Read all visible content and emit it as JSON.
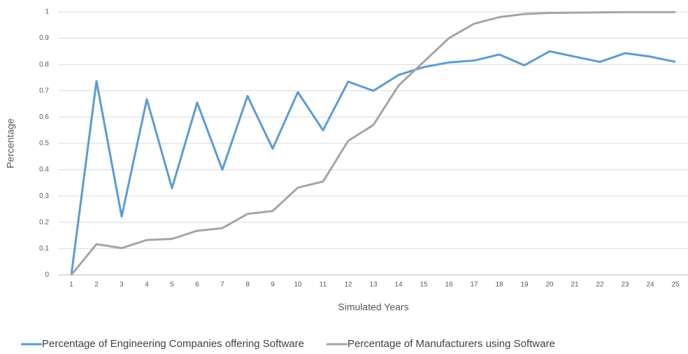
{
  "chart_data": {
    "type": "line",
    "x_label": "Simulated Years",
    "y_label": "Percentage",
    "categories": [
      "1",
      "2",
      "3",
      "4",
      "5",
      "6",
      "7",
      "8",
      "9",
      "10",
      "11",
      "12",
      "13",
      "14",
      "15",
      "16",
      "17",
      "18",
      "19",
      "20",
      "21",
      "22",
      "23",
      "24",
      "25"
    ],
    "series": [
      {
        "name": "Percentage of Engineering Companies offering Software",
        "color": "#5b9bd5",
        "values": [
          0,
          0.737,
          0.222,
          0.668,
          0.33,
          0.655,
          0.4,
          0.68,
          0.48,
          0.695,
          0.55,
          0.735,
          0.7,
          0.76,
          0.79,
          0.808,
          0.815,
          0.838,
          0.797,
          0.85,
          0.83,
          0.81,
          0.843,
          0.83,
          0.81
        ]
      },
      {
        "name": "Percentage of Manufacturers using Software",
        "color": "#a5a5a5",
        "values": [
          0,
          0.117,
          0.102,
          0.133,
          0.137,
          0.168,
          0.178,
          0.232,
          0.243,
          0.332,
          0.355,
          0.51,
          0.57,
          0.72,
          0.81,
          0.9,
          0.955,
          0.98,
          0.992,
          0.996,
          0.997,
          0.998,
          0.999,
          0.999,
          0.999
        ]
      }
    ],
    "ylim": [
      0,
      1
    ],
    "yticks": [
      0,
      0.1,
      0.2,
      0.3,
      0.4,
      0.5,
      0.6,
      0.7,
      0.8,
      0.9,
      1
    ],
    "grid": true,
    "legend": "bottom"
  }
}
